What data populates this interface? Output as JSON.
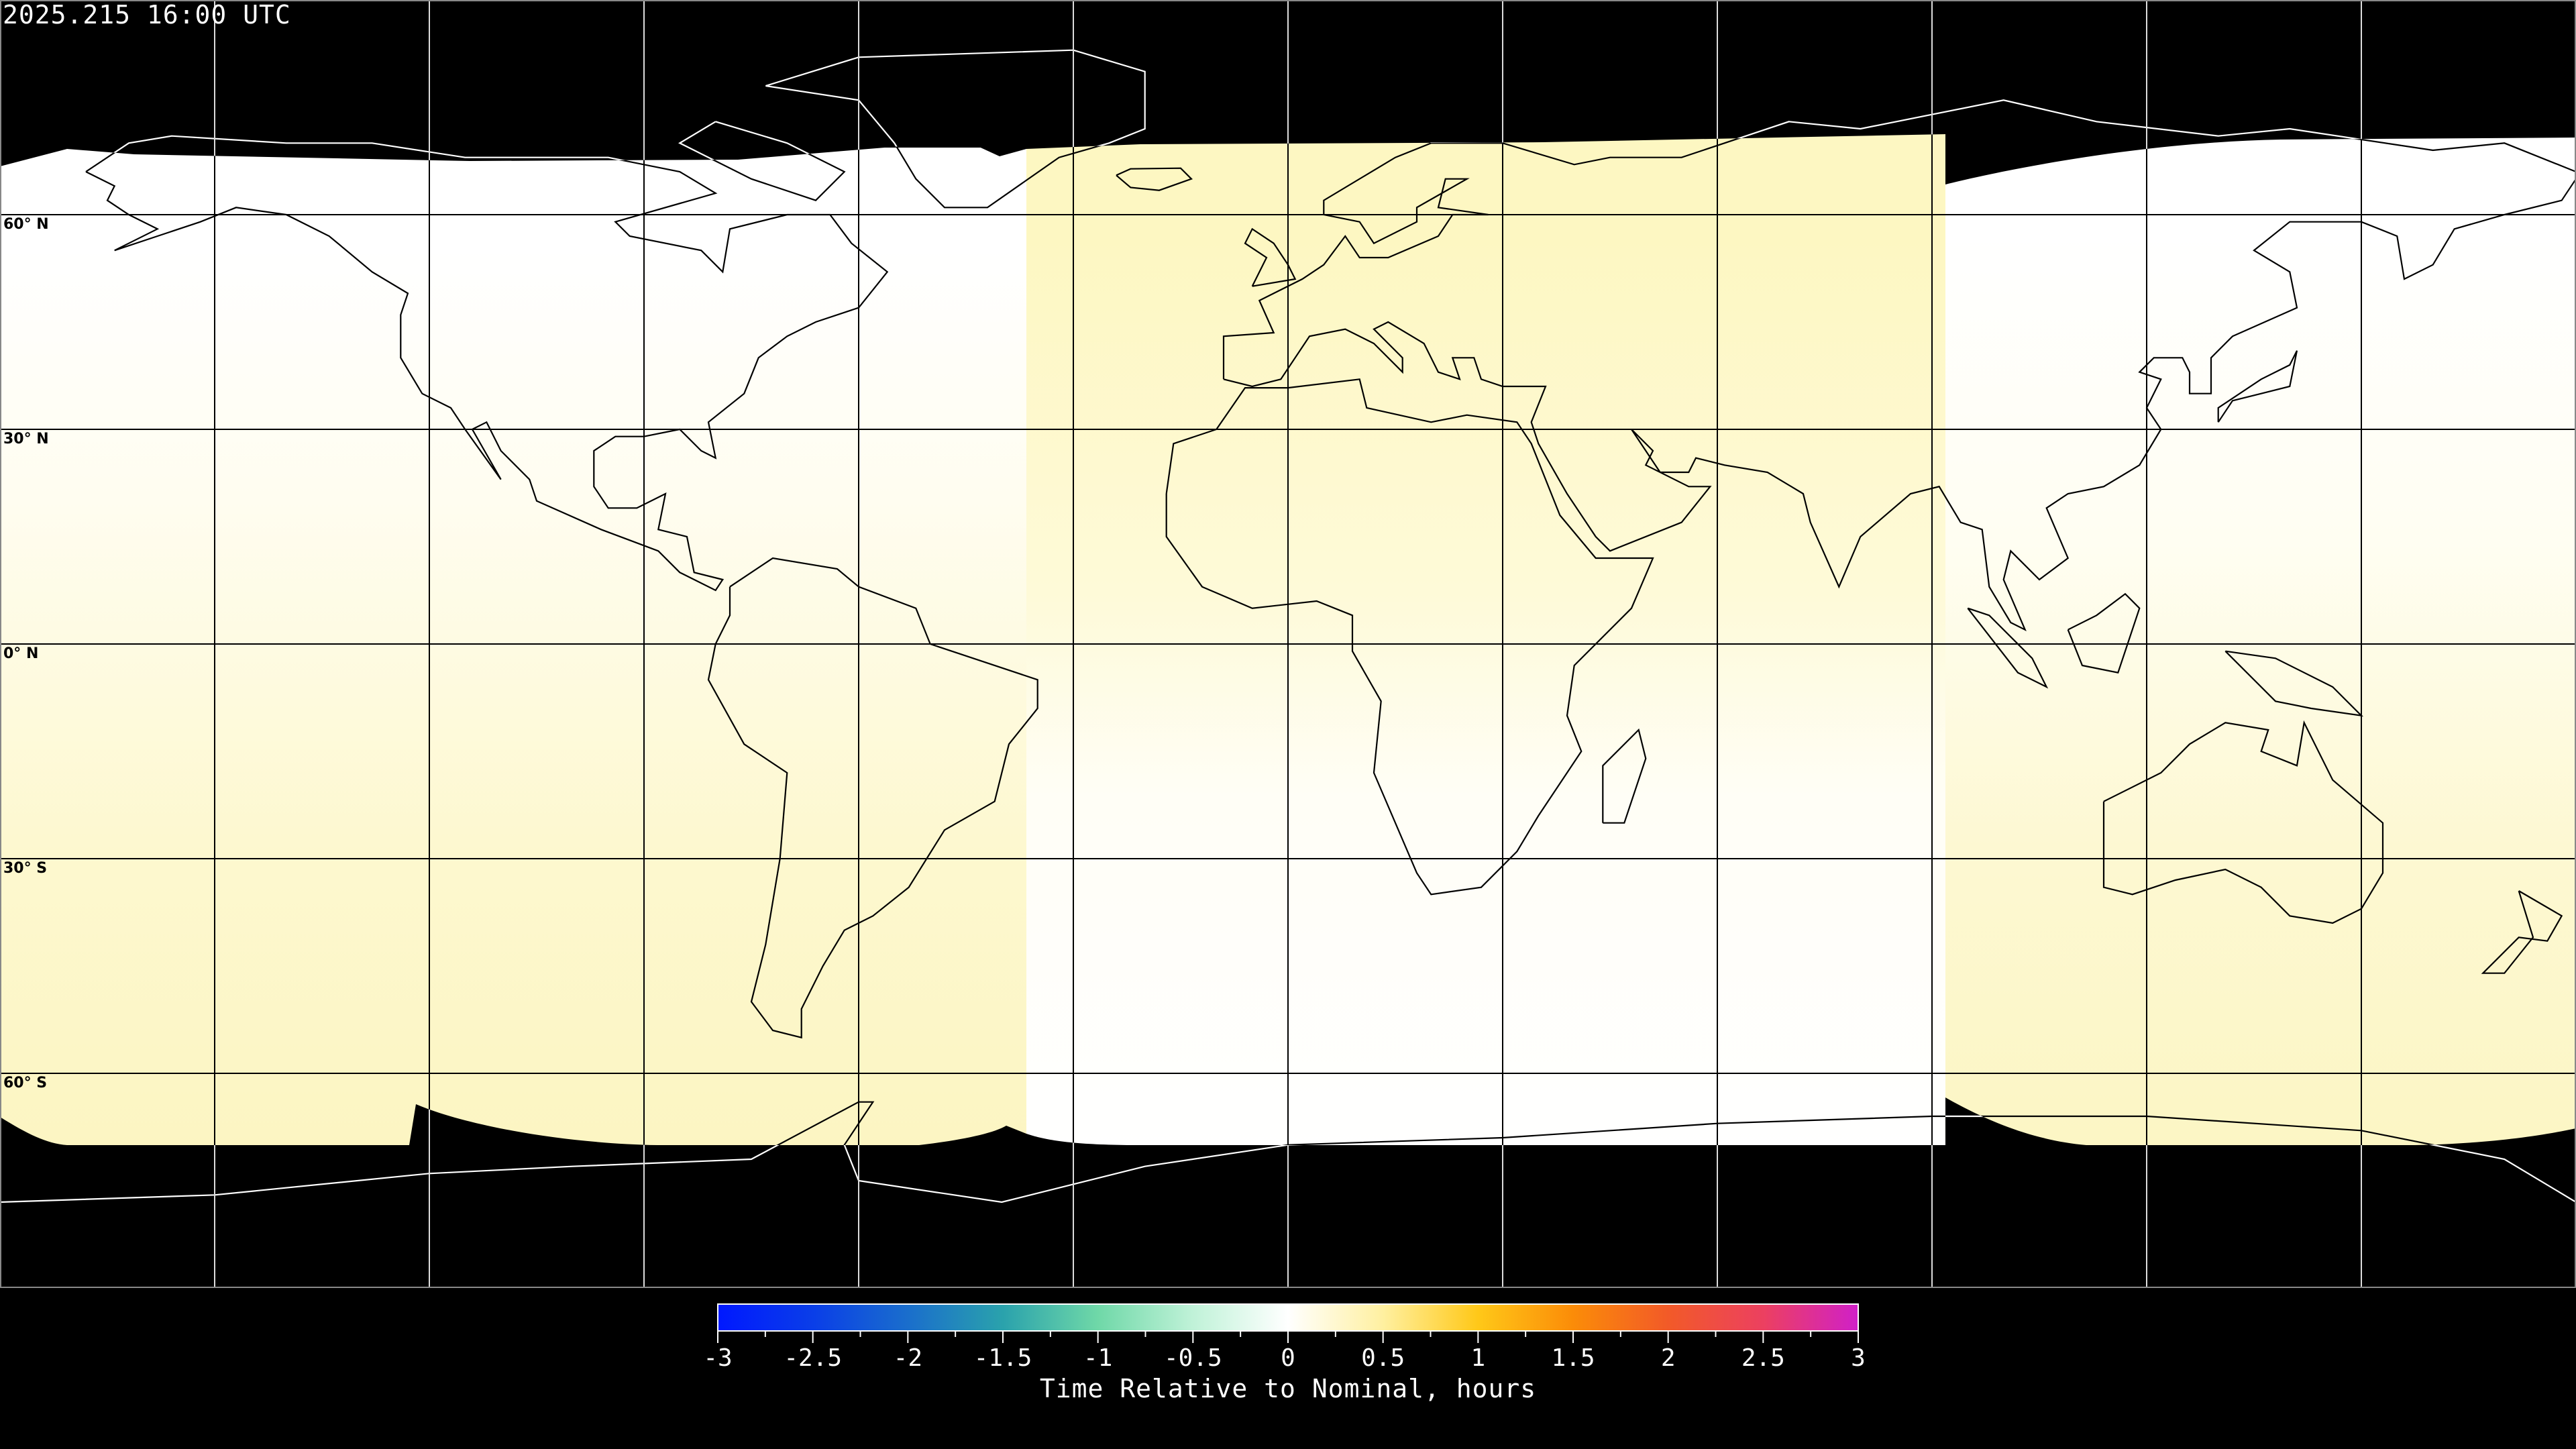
{
  "title": "2025.215 16:00 UTC",
  "map": {
    "projection": "equirectangular",
    "lon_range": [
      -180,
      180
    ],
    "lat_range": [
      -90,
      90
    ],
    "gridline_spacing_deg": 30,
    "lat_labels": [
      "60° N",
      "30° N",
      "0° N",
      "30° S",
      "60° S"
    ],
    "night_color": "#000000",
    "day_colors": {
      "zero": "#ffffff",
      "plus_small": "#fdf8c4"
    }
  },
  "colorbar": {
    "title": "Time Relative to Nominal, hours",
    "range": [
      -3,
      3
    ],
    "tick_labels": [
      "-3",
      "-2.5",
      "-2",
      "-1.5",
      "-1",
      "-0.5",
      "0",
      "0.5",
      "1",
      "1.5",
      "2",
      "2.5",
      "3"
    ],
    "colors": [
      "#0018ff",
      "#0a3ee8",
      "#1a6ecc",
      "#2aa2ac",
      "#6fd8a8",
      "#c0f2d8",
      "#ffffff",
      "#fff0a0",
      "#ffc818",
      "#fb8c08",
      "#f25a28",
      "#ec4060",
      "#d020c8"
    ]
  }
}
